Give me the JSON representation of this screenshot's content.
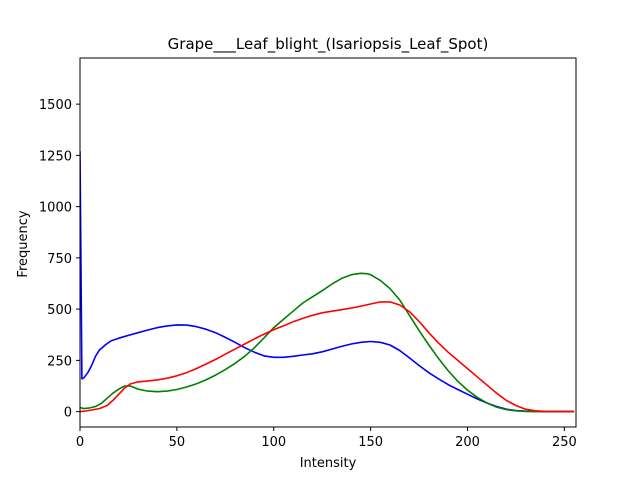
{
  "chart_data": {
    "type": "line",
    "title": "Grape___Leaf_blight_(Isariopsis_Leaf_Spot)",
    "xlabel": "Intensity",
    "ylabel": "Frequency",
    "xlim": [
      0,
      256
    ],
    "ylim": [
      -75,
      1725
    ],
    "xticks": [
      0,
      50,
      100,
      150,
      200,
      250
    ],
    "yticks": [
      0,
      250,
      500,
      750,
      1000,
      1250,
      1500
    ],
    "grid": false,
    "legend": "none",
    "series": [
      {
        "color": "#0000ff",
        "x": [
          0,
          0.5,
          1,
          2,
          4,
          6,
          8,
          10,
          13,
          16,
          20,
          25,
          30,
          35,
          40,
          45,
          50,
          55,
          60,
          65,
          70,
          75,
          80,
          85,
          90,
          95,
          100,
          105,
          110,
          115,
          120,
          125,
          130,
          135,
          140,
          145,
          150,
          155,
          160,
          165,
          170,
          175,
          180,
          185,
          190,
          195,
          200,
          205,
          210,
          215,
          220,
          225,
          230,
          235,
          240,
          245,
          250,
          255
        ],
        "y": [
          1270,
          700,
          160,
          165,
          190,
          225,
          270,
          300,
          325,
          345,
          358,
          372,
          385,
          398,
          410,
          418,
          423,
          422,
          415,
          402,
          385,
          362,
          338,
          312,
          290,
          272,
          265,
          265,
          270,
          276,
          282,
          292,
          305,
          318,
          330,
          338,
          342,
          338,
          325,
          298,
          262,
          225,
          190,
          160,
          132,
          108,
          85,
          62,
          42,
          25,
          12,
          5,
          2,
          1,
          0,
          0,
          0,
          0
        ]
      },
      {
        "color": "#008000",
        "x": [
          0,
          2,
          5,
          8,
          11,
          14,
          17,
          20,
          23,
          26,
          30,
          35,
          40,
          45,
          50,
          55,
          60,
          65,
          70,
          75,
          80,
          85,
          90,
          95,
          100,
          105,
          110,
          115,
          120,
          125,
          130,
          135,
          140,
          145,
          148,
          150,
          155,
          160,
          165,
          170,
          175,
          180,
          185,
          190,
          195,
          200,
          205,
          210,
          215,
          220,
          225,
          230,
          235,
          240,
          245,
          250,
          255
        ],
        "y": [
          20,
          15,
          18,
          25,
          40,
          65,
          90,
          110,
          125,
          125,
          110,
          100,
          97,
          100,
          108,
          120,
          135,
          155,
          178,
          205,
          235,
          270,
          312,
          360,
          410,
          450,
          490,
          530,
          560,
          590,
          622,
          650,
          668,
          675,
          673,
          668,
          640,
          600,
          545,
          470,
          395,
          325,
          260,
          200,
          148,
          105,
          70,
          42,
          22,
          10,
          4,
          1,
          0,
          0,
          0,
          0,
          0
        ]
      },
      {
        "color": "#ff0000",
        "x": [
          0,
          3,
          6,
          10,
          14,
          17,
          20,
          23,
          26,
          30,
          35,
          40,
          45,
          50,
          55,
          60,
          65,
          70,
          75,
          80,
          85,
          90,
          95,
          100,
          105,
          110,
          115,
          120,
          125,
          130,
          135,
          140,
          145,
          150,
          155,
          160,
          165,
          170,
          175,
          180,
          185,
          190,
          195,
          200,
          205,
          210,
          215,
          220,
          225,
          230,
          235,
          240,
          245,
          250,
          255
        ],
        "y": [
          0,
          3,
          8,
          15,
          30,
          55,
          85,
          115,
          135,
          145,
          150,
          155,
          163,
          175,
          190,
          210,
          232,
          255,
          280,
          305,
          330,
          355,
          378,
          400,
          418,
          438,
          455,
          470,
          482,
          490,
          497,
          505,
          515,
          525,
          535,
          535,
          520,
          488,
          440,
          385,
          335,
          290,
          250,
          210,
          170,
          130,
          90,
          55,
          30,
          12,
          4,
          1,
          0,
          0,
          0
        ]
      }
    ]
  }
}
